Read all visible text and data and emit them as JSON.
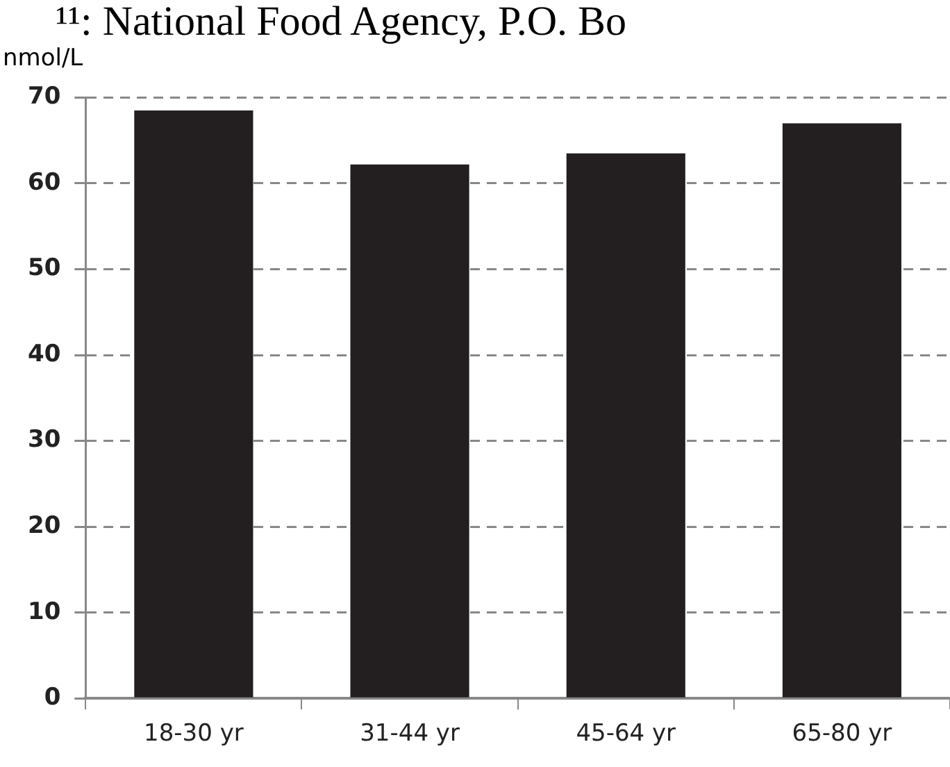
{
  "chart_data": {
    "type": "bar",
    "ylabel": "nmol/L",
    "annotations": [
      "¹¹: National Food Agency, P.O. Bo"
    ],
    "categories": [
      "18-30 yr",
      "31-44 yr",
      "45-64 yr",
      "65-80 yr"
    ],
    "values": [
      68.5,
      62.2,
      63.5,
      67
    ],
    "color": "#231f20",
    "ylim": [
      0,
      70
    ],
    "yticks": [
      0,
      10,
      20,
      30,
      40,
      50,
      60,
      70
    ],
    "grid": "y",
    "legend": false
  }
}
